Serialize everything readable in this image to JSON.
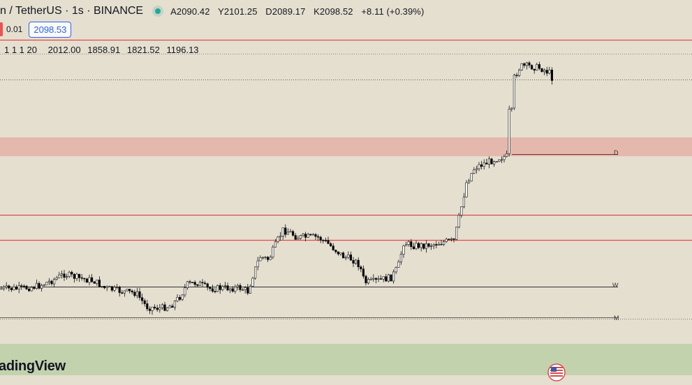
{
  "header": {
    "symbol_title": "n / TetherUS · 1s · BINANCE",
    "ohlc": {
      "open": "A2090.42",
      "high": "Y2101.25",
      "low": "D2089.17",
      "close": "K2098.52",
      "change": "+8.11 (+0.39%)"
    }
  },
  "order_row": {
    "tick_size": "0.01",
    "price": "2098.53"
  },
  "indicator": {
    "params": "1 1 1 20",
    "values": [
      "2012.00",
      "1858.91",
      "1821.52",
      "1196.13"
    ]
  },
  "levels": {
    "daily_label": "D",
    "weekly_label": "W",
    "monthly_label": "M"
  },
  "branding": {
    "logo_text": "adingView",
    "flag_icon": "us-flag-icon"
  },
  "colors": {
    "background": "#e5dfcf",
    "resistance_zone": "#e4b8ac",
    "support_zone": "#c2d2ad",
    "red_level": "#e04a4a",
    "up_candle": "#ffffff",
    "down_candle": "#000000"
  }
}
